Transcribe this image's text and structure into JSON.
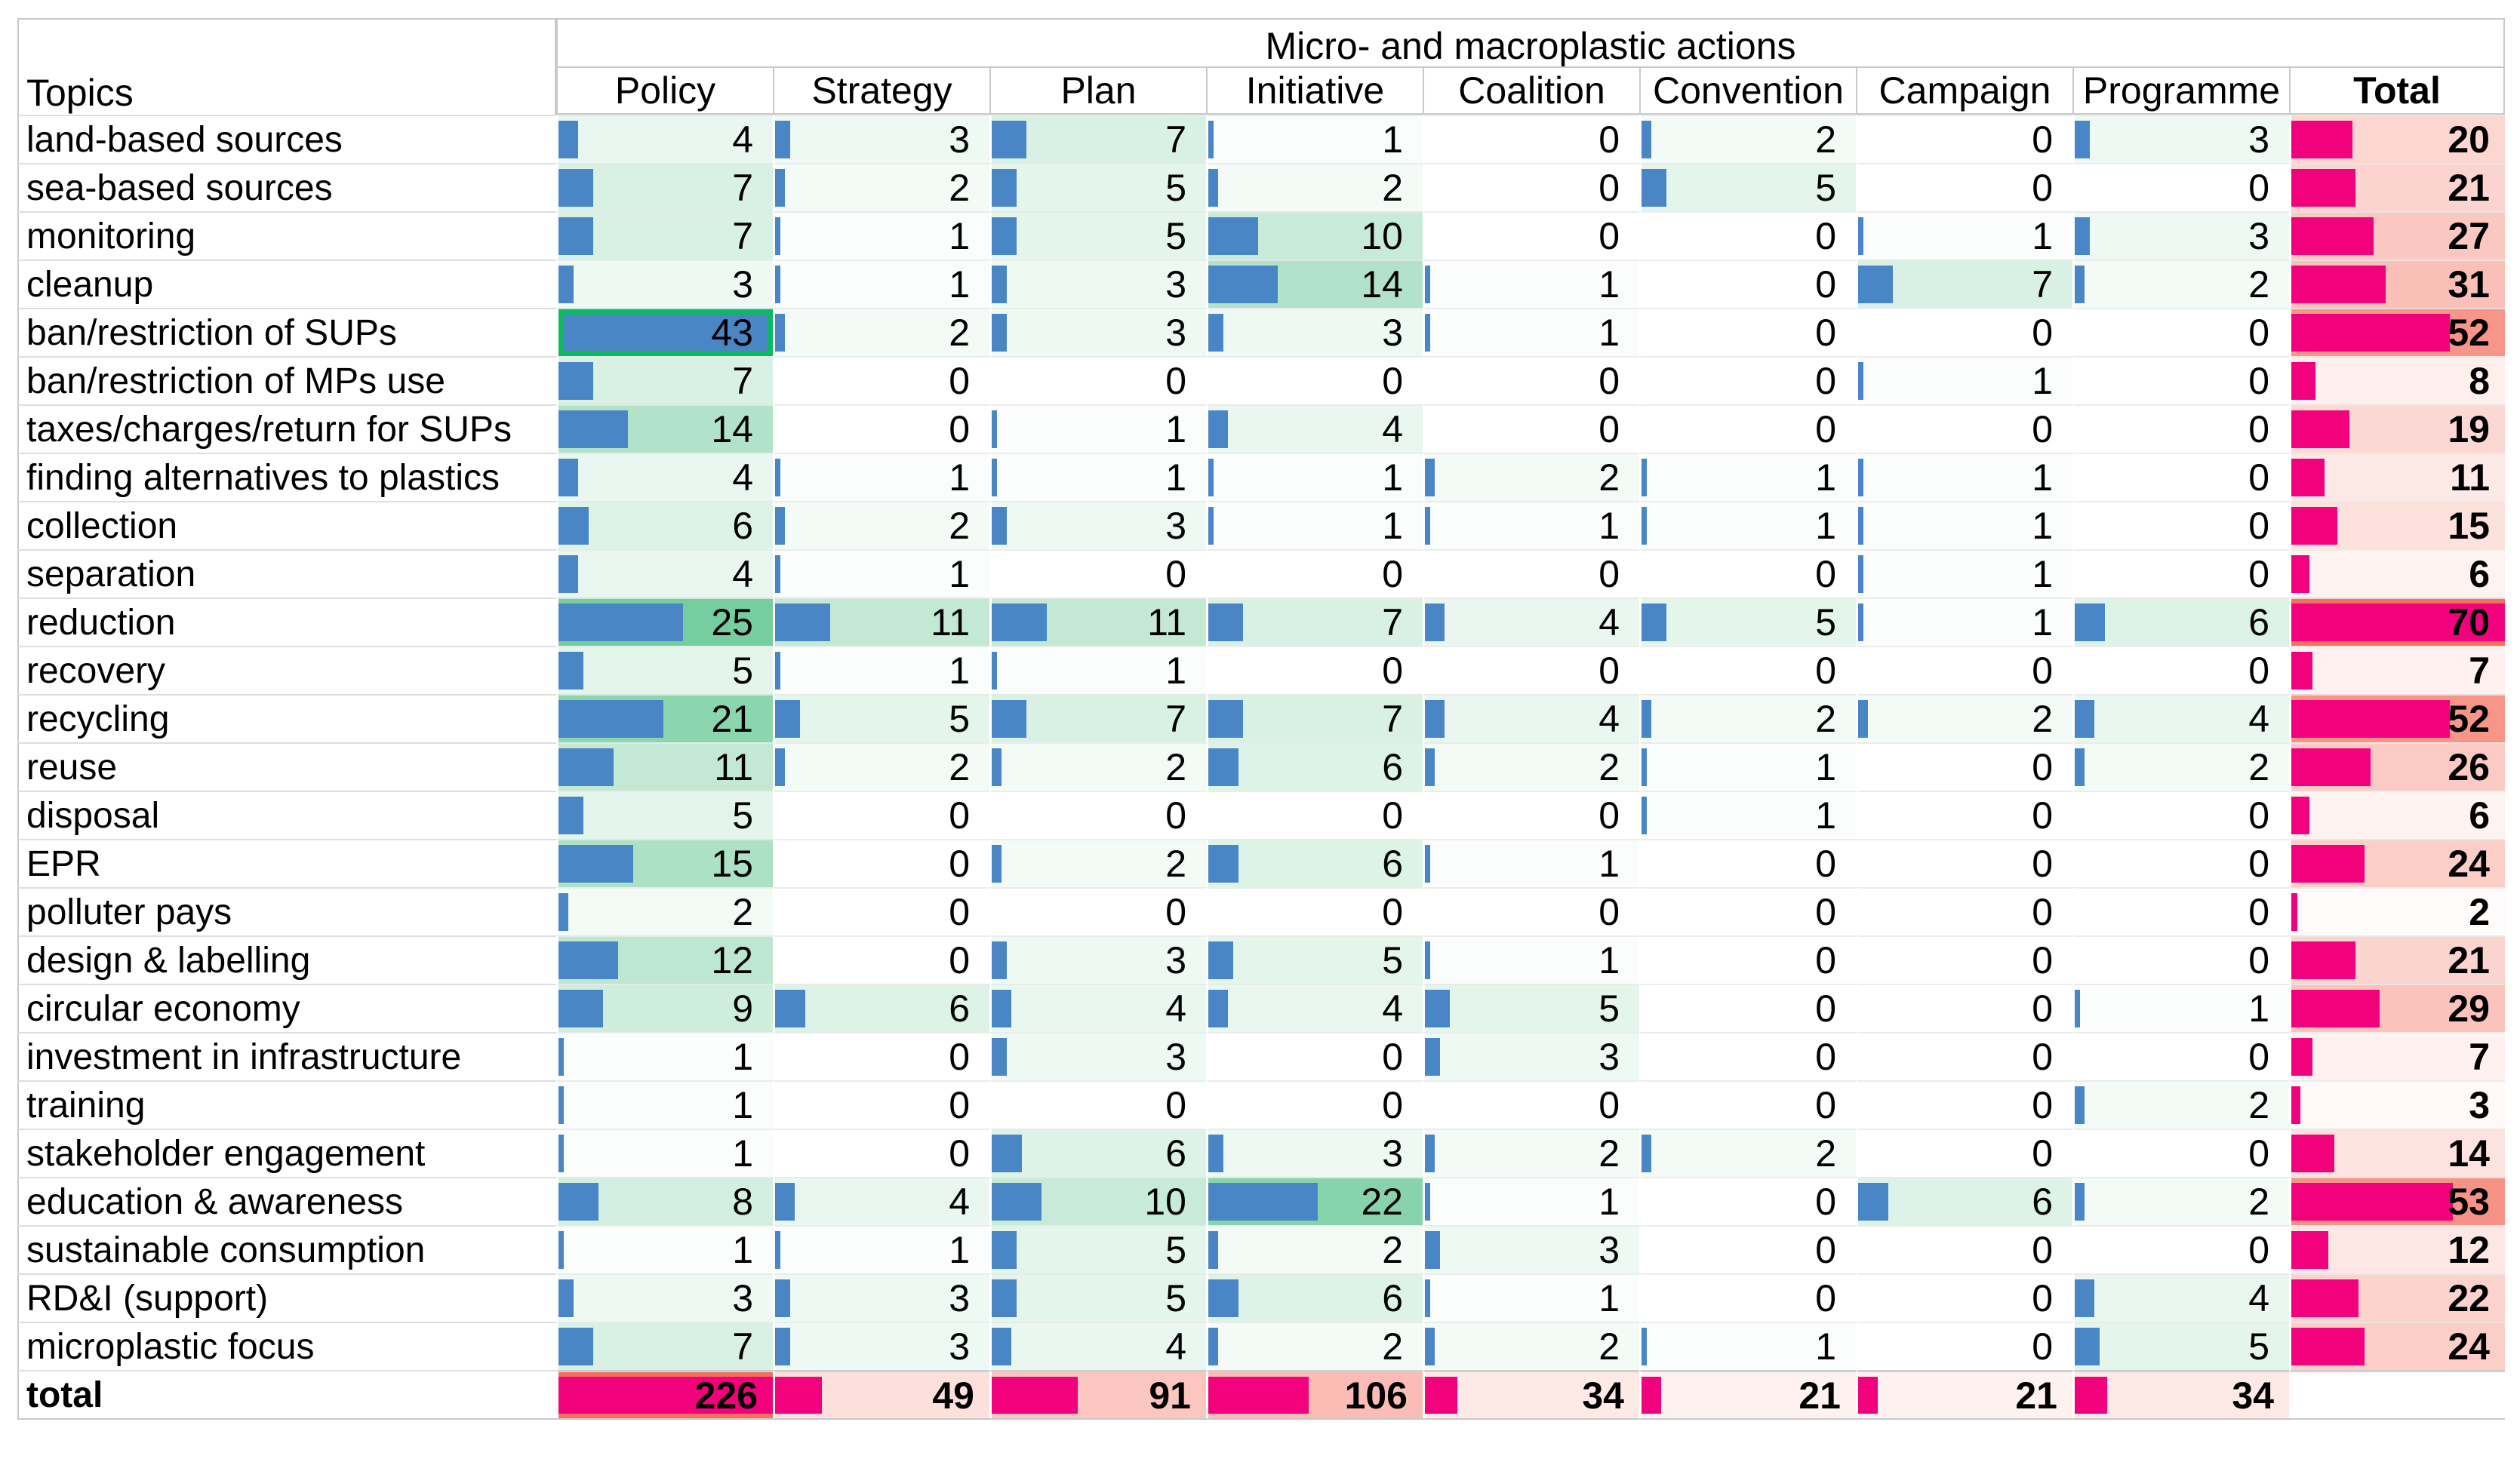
{
  "title": "Micro- and macroplastic actions",
  "topics_header": "Topics",
  "columns": [
    "Policy",
    "Strategy",
    "Plan",
    "Initiative",
    "Coalition",
    "Convention",
    "Campaign",
    "Programme"
  ],
  "total_header": "Total",
  "colors": {
    "bar_blue": "#4a86c5",
    "bar_pink": "#f1017b",
    "green_scale_max": "#45bc7e",
    "red_scale_max": "#f4715f",
    "highlight_green": "#0db863",
    "grid_gray": "#c9c9c9"
  },
  "chart_data": {
    "type": "table",
    "title": "Micro- and macroplastic actions",
    "columns": [
      "Policy",
      "Strategy",
      "Plan",
      "Initiative",
      "Coalition",
      "Convention",
      "Campaign",
      "Programme"
    ],
    "rows": [
      {
        "topic": "land-based sources",
        "values": [
          4,
          3,
          7,
          1,
          0,
          2,
          0,
          3
        ],
        "total": 20
      },
      {
        "topic": "sea-based sources",
        "values": [
          7,
          2,
          5,
          2,
          0,
          5,
          0,
          0
        ],
        "total": 21
      },
      {
        "topic": "monitoring",
        "values": [
          7,
          1,
          5,
          10,
          0,
          0,
          1,
          3
        ],
        "total": 27
      },
      {
        "topic": "cleanup",
        "values": [
          3,
          1,
          3,
          14,
          1,
          0,
          7,
          2
        ],
        "total": 31
      },
      {
        "topic": "ban/restriction of SUPs",
        "values": [
          43,
          2,
          3,
          3,
          1,
          0,
          0,
          0
        ],
        "total": 52
      },
      {
        "topic": "ban/restriction of MPs use",
        "values": [
          7,
          0,
          0,
          0,
          0,
          0,
          1,
          0
        ],
        "total": 8
      },
      {
        "topic": "taxes/charges/return for SUPs",
        "values": [
          14,
          0,
          1,
          4,
          0,
          0,
          0,
          0
        ],
        "total": 19
      },
      {
        "topic": "finding alternatives to plastics",
        "values": [
          4,
          1,
          1,
          1,
          2,
          1,
          1,
          0
        ],
        "total": 11
      },
      {
        "topic": "collection",
        "values": [
          6,
          2,
          3,
          1,
          1,
          1,
          1,
          0
        ],
        "total": 15
      },
      {
        "topic": "separation",
        "values": [
          4,
          1,
          0,
          0,
          0,
          0,
          1,
          0
        ],
        "total": 6
      },
      {
        "topic": "reduction",
        "values": [
          25,
          11,
          11,
          7,
          4,
          5,
          1,
          6
        ],
        "total": 70
      },
      {
        "topic": "recovery",
        "values": [
          5,
          1,
          1,
          0,
          0,
          0,
          0,
          0
        ],
        "total": 7
      },
      {
        "topic": "recycling",
        "values": [
          21,
          5,
          7,
          7,
          4,
          2,
          2,
          4
        ],
        "total": 52
      },
      {
        "topic": "reuse",
        "values": [
          11,
          2,
          2,
          6,
          2,
          1,
          0,
          2
        ],
        "total": 26
      },
      {
        "topic": "disposal",
        "values": [
          5,
          0,
          0,
          0,
          0,
          1,
          0,
          0
        ],
        "total": 6
      },
      {
        "topic": "EPR",
        "values": [
          15,
          0,
          2,
          6,
          1,
          0,
          0,
          0
        ],
        "total": 24
      },
      {
        "topic": "polluter pays",
        "values": [
          2,
          0,
          0,
          0,
          0,
          0,
          0,
          0
        ],
        "total": 2
      },
      {
        "topic": "design & labelling",
        "values": [
          12,
          0,
          3,
          5,
          1,
          0,
          0,
          0
        ],
        "total": 21
      },
      {
        "topic": "circular economy",
        "values": [
          9,
          6,
          4,
          4,
          5,
          0,
          0,
          1
        ],
        "total": 29
      },
      {
        "topic": "investment in infrastructure",
        "values": [
          1,
          0,
          3,
          0,
          3,
          0,
          0,
          0
        ],
        "total": 7
      },
      {
        "topic": "training",
        "values": [
          1,
          0,
          0,
          0,
          0,
          0,
          0,
          2
        ],
        "total": 3
      },
      {
        "topic": "stakeholder engagement",
        "values": [
          1,
          0,
          6,
          3,
          2,
          2,
          0,
          0
        ],
        "total": 14
      },
      {
        "topic": "education & awareness",
        "values": [
          8,
          4,
          10,
          22,
          1,
          0,
          6,
          2
        ],
        "total": 53
      },
      {
        "topic": "sustainable consumption",
        "values": [
          1,
          1,
          5,
          2,
          3,
          0,
          0,
          0
        ],
        "total": 12
      },
      {
        "topic": "RD&I (support)",
        "values": [
          3,
          3,
          5,
          6,
          1,
          0,
          0,
          4
        ],
        "total": 22
      },
      {
        "topic": "microplastic focus",
        "values": [
          7,
          3,
          4,
          2,
          2,
          1,
          0,
          5
        ],
        "total": 24
      }
    ],
    "totals_row": {
      "label": "total",
      "values": [
        226,
        49,
        91,
        106,
        34,
        21,
        21,
        34
      ]
    },
    "scales": {
      "action_bar_max": 43,
      "green_bg_max": 34,
      "total_bar_max": 70,
      "total_bg_max": 70,
      "totals_row_bar_max": 226,
      "totals_row_bg_max": 226
    },
    "highlight_cell": {
      "topic": "ban/restriction of SUPs",
      "column": "Policy"
    }
  }
}
